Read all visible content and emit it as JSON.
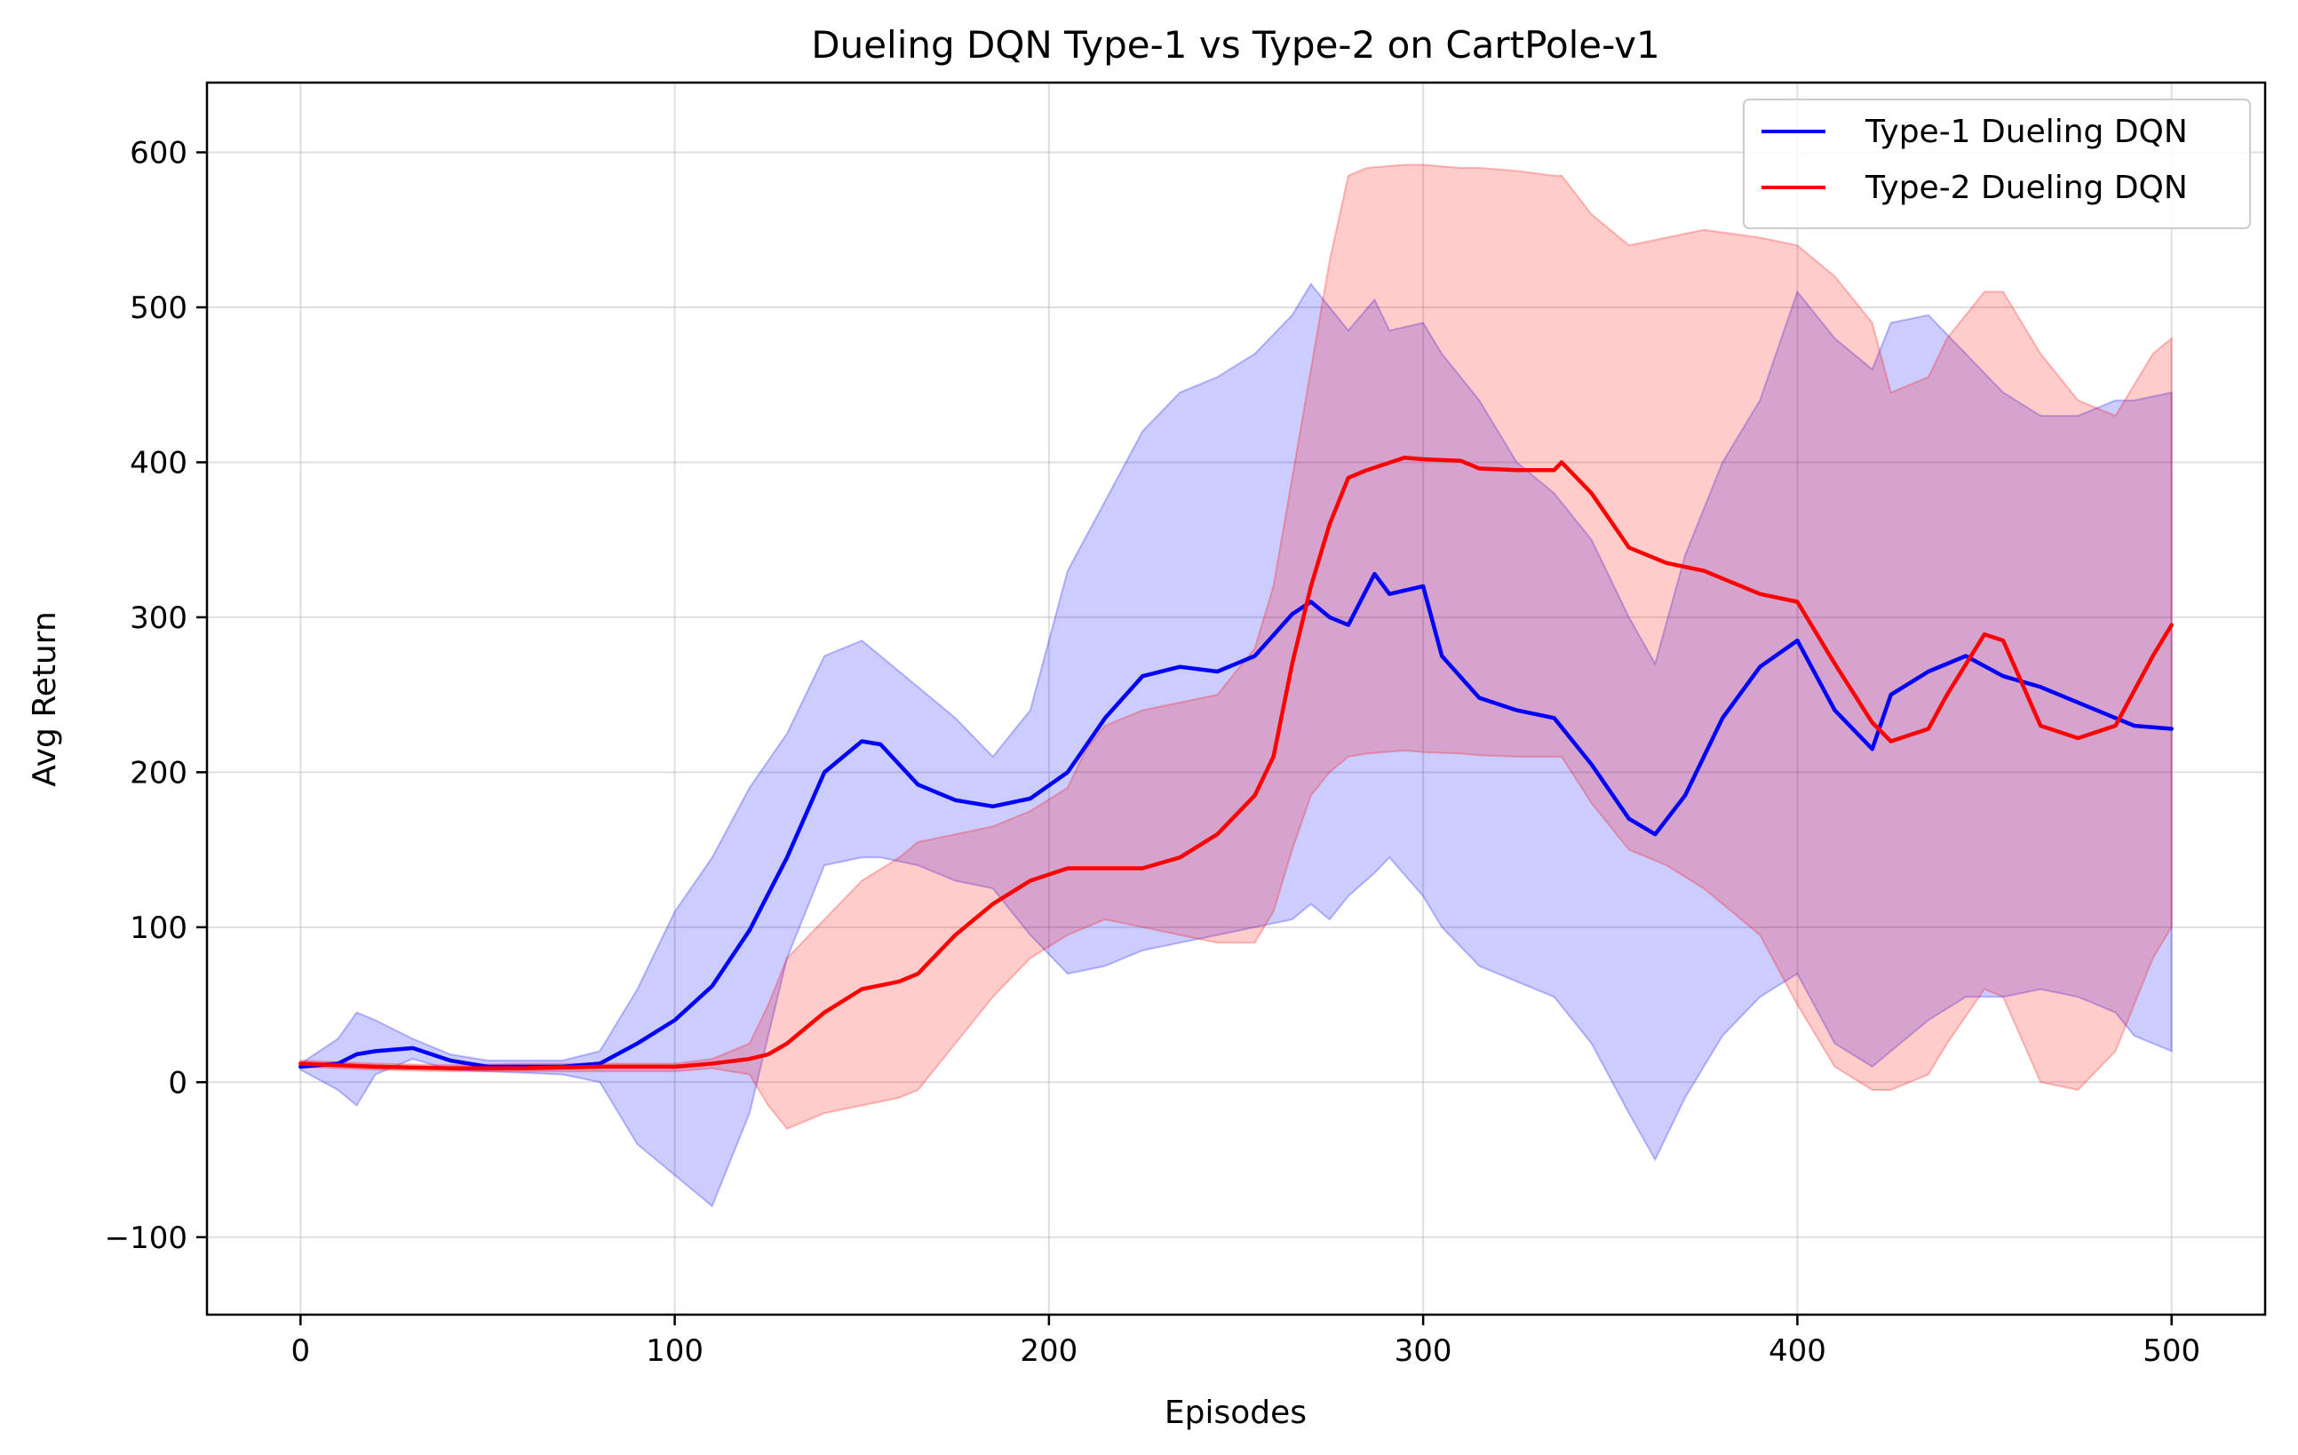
{
  "chart_data": {
    "type": "line",
    "title": "Dueling DQN Type-1 vs Type-2 on CartPole-v1",
    "xlabel": "Episodes",
    "ylabel": "Avg Return",
    "xlim": [
      -25,
      525
    ],
    "ylim": [
      -150,
      645
    ],
    "xticks": [
      0,
      100,
      200,
      300,
      400,
      500
    ],
    "yticks": [
      -100,
      0,
      100,
      200,
      300,
      400,
      500,
      600
    ],
    "xtick_labels": [
      "0",
      "100",
      "200",
      "300",
      "400",
      "500"
    ],
    "ytick_labels": [
      "−100",
      "0",
      "100",
      "200",
      "300",
      "400",
      "500",
      "600"
    ],
    "grid": true,
    "legend_position": "top-right",
    "series": [
      {
        "name": "Type-1 Dueling DQN",
        "color": "#0000ff",
        "band_color": "#0000ff",
        "band_opacity": 0.2,
        "x": [
          0,
          10,
          15,
          20,
          30,
          40,
          50,
          60,
          70,
          80,
          90,
          100,
          110,
          120,
          130,
          140,
          150,
          155,
          165,
          175,
          185,
          195,
          205,
          215,
          225,
          235,
          245,
          255,
          265,
          270,
          275,
          280,
          287,
          291,
          300,
          305,
          315,
          325,
          335,
          345,
          355,
          362,
          370,
          380,
          390,
          400,
          410,
          420,
          425,
          435,
          445,
          455,
          465,
          475,
          485,
          490,
          500
        ],
        "mean": [
          10,
          12,
          18,
          20,
          22,
          14,
          10,
          10,
          10,
          12,
          25,
          40,
          62,
          98,
          145,
          200,
          220,
          218,
          192,
          182,
          178,
          183,
          200,
          235,
          262,
          268,
          265,
          275,
          302,
          310,
          300,
          295,
          328,
          315,
          320,
          275,
          248,
          240,
          235,
          205,
          170,
          160,
          185,
          235,
          268,
          285,
          240,
          215,
          250,
          265,
          275,
          262,
          255,
          245,
          235,
          230,
          228
        ],
        "upper": [
          12,
          28,
          45,
          40,
          28,
          18,
          14,
          14,
          14,
          20,
          60,
          110,
          145,
          190,
          225,
          275,
          285,
          275,
          255,
          235,
          210,
          240,
          330,
          375,
          420,
          445,
          455,
          470,
          495,
          515,
          500,
          485,
          505,
          485,
          490,
          470,
          440,
          400,
          380,
          350,
          300,
          270,
          340,
          400,
          440,
          510,
          480,
          460,
          490,
          495,
          470,
          445,
          430,
          430,
          440,
          440,
          445
        ],
        "lower": [
          8,
          -5,
          -15,
          5,
          15,
          8,
          7,
          6,
          5,
          0,
          -40,
          -60,
          -80,
          -20,
          80,
          140,
          145,
          145,
          140,
          130,
          125,
          95,
          70,
          75,
          85,
          90,
          95,
          100,
          105,
          115,
          105,
          120,
          135,
          145,
          120,
          100,
          75,
          65,
          55,
          25,
          -20,
          -50,
          -10,
          30,
          55,
          70,
          25,
          10,
          20,
          40,
          55,
          55,
          60,
          55,
          45,
          30,
          20
        ]
      },
      {
        "name": "Type-2 Dueling DQN",
        "color": "#ff0000",
        "band_color": "#ff0000",
        "band_opacity": 0.2,
        "x": [
          0,
          20,
          40,
          60,
          80,
          100,
          110,
          120,
          125,
          130,
          140,
          150,
          160,
          165,
          175,
          185,
          195,
          205,
          210,
          215,
          225,
          235,
          245,
          255,
          260,
          265,
          270,
          275,
          280,
          285,
          295,
          300,
          310,
          315,
          325,
          335,
          337,
          345,
          355,
          365,
          375,
          390,
          400,
          410,
          420,
          425,
          435,
          440,
          450,
          455,
          465,
          475,
          485,
          495,
          500
        ],
        "mean": [
          12,
          10,
          9,
          9,
          10,
          10,
          12,
          15,
          18,
          25,
          45,
          60,
          65,
          70,
          95,
          115,
          130,
          138,
          138,
          138,
          138,
          145,
          160,
          185,
          210,
          270,
          320,
          360,
          390,
          395,
          403,
          402,
          401,
          396,
          395,
          395,
          400,
          380,
          345,
          335,
          330,
          315,
          310,
          270,
          232,
          220,
          228,
          250,
          289,
          285,
          230,
          222,
          230,
          275,
          295
        ],
        "upper": [
          14,
          12,
          11,
          12,
          12,
          12,
          15,
          25,
          50,
          80,
          105,
          130,
          145,
          155,
          160,
          165,
          175,
          190,
          215,
          230,
          240,
          245,
          250,
          280,
          320,
          390,
          460,
          530,
          585,
          590,
          592,
          592,
          590,
          590,
          588,
          585,
          585,
          560,
          540,
          545,
          550,
          545,
          540,
          520,
          490,
          445,
          455,
          480,
          510,
          510,
          470,
          440,
          430,
          470,
          480
        ],
        "lower": [
          10,
          8,
          7,
          7,
          7,
          7,
          9,
          5,
          -15,
          -30,
          -20,
          -15,
          -10,
          -5,
          25,
          55,
          80,
          95,
          100,
          105,
          100,
          95,
          90,
          90,
          110,
          150,
          185,
          200,
          210,
          212,
          214,
          213,
          212,
          211,
          210,
          210,
          210,
          180,
          150,
          140,
          125,
          95,
          50,
          10,
          -5,
          -5,
          5,
          25,
          60,
          55,
          0,
          -5,
          20,
          80,
          100
        ]
      }
    ]
  }
}
